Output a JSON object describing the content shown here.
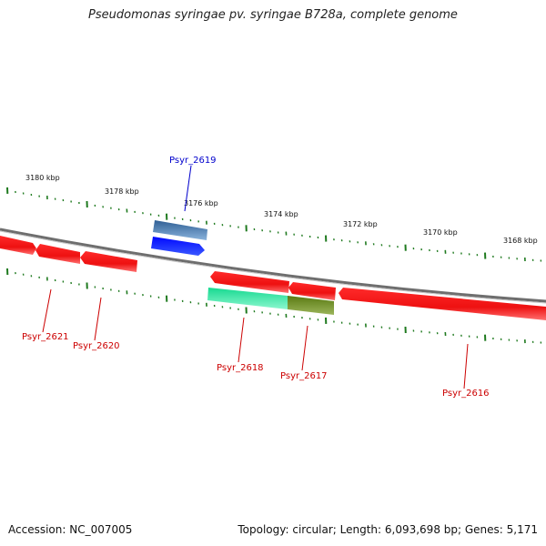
{
  "title": "Pseudomonas syringae pv. syringae B728a, complete genome",
  "footer": {
    "accession": "Accession: NC_007005",
    "summary": "Topology: circular; Length: 6,093,698 bp; Genes: 5,171"
  },
  "colors": {
    "backbone": "#7a7a7a",
    "tick": "#1f7a1f",
    "gene_red": "#ee1111",
    "gene_blue": "#0a14ff",
    "gene_steel": "#4a78b0",
    "gene_cyan": "#20e6a2",
    "gene_olive": "#6b8a20",
    "label_red": "#cc0000",
    "label_blue": "#0000cc"
  },
  "scale_labels": [
    {
      "text": "3180 kbp",
      "kbp": 3180
    },
    {
      "text": "3178 kbp",
      "kbp": 3178
    },
    {
      "text": "3176 kbp",
      "kbp": 3176
    },
    {
      "text": "3174 kbp",
      "kbp": 3174
    },
    {
      "text": "3172 kbp",
      "kbp": 3172
    },
    {
      "text": "3170 kbp",
      "kbp": 3170
    },
    {
      "text": "3168 kbp",
      "kbp": 3168
    }
  ],
  "genes": [
    {
      "label": "Psyr_2621",
      "color": "red",
      "strand": "reverse"
    },
    {
      "label": "Psyr_2620",
      "color": "red",
      "strand": "reverse"
    },
    {
      "label": "Psyr_2619",
      "color": "blue",
      "strand": "forward"
    },
    {
      "label": "Psyr_2618",
      "color": "red",
      "strand": "reverse"
    },
    {
      "label": "Psyr_2617",
      "color": "red",
      "strand": "reverse"
    },
    {
      "label": "Psyr_2616",
      "color": "red",
      "strand": "reverse"
    }
  ],
  "features": [
    {
      "label": "",
      "color": "steel"
    },
    {
      "label": "",
      "color": "cyan"
    },
    {
      "label": "",
      "color": "olive"
    }
  ]
}
